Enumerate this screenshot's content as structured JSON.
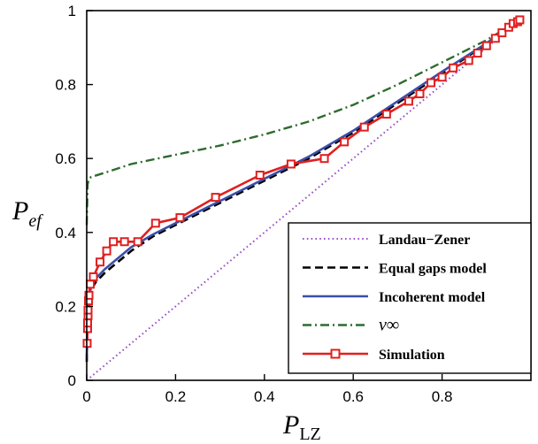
{
  "chart_data": {
    "type": "line",
    "xlabel": "P",
    "xlabel_sub": "LZ",
    "ylabel": "P",
    "ylabel_sub": "ef",
    "xlim": [
      0,
      1
    ],
    "ylim": [
      0,
      1
    ],
    "x_ticks": [
      "0",
      "0.2",
      "0.4",
      "0.6",
      "0.8"
    ],
    "x_tick_values": [
      0,
      0.2,
      0.4,
      0.6,
      0.8
    ],
    "y_ticks": [
      "0",
      "0.2",
      "0.4",
      "0.6",
      "0.8",
      "1"
    ],
    "y_tick_values": [
      0,
      0.2,
      0.4,
      0.6,
      0.8,
      1
    ],
    "grid": false,
    "legend_position": "bottom-right",
    "series": [
      {
        "name": "Landau−Zener",
        "color": "#9b4fc8",
        "style": "dotted",
        "x": [
          0,
          0.975
        ],
        "y": [
          0,
          0.975
        ]
      },
      {
        "name": "Equal gaps model",
        "color": "#000000",
        "style": "dashed",
        "x": [
          0,
          0.002,
          0.005,
          0.01,
          0.02,
          0.04,
          0.06,
          0.08,
          0.1,
          0.15,
          0.2,
          0.3,
          0.4,
          0.5,
          0.6,
          0.7,
          0.8,
          0.9,
          0.975
        ],
        "y": [
          0.05,
          0.16,
          0.21,
          0.245,
          0.265,
          0.29,
          0.31,
          0.33,
          0.35,
          0.39,
          0.42,
          0.48,
          0.54,
          0.6,
          0.67,
          0.75,
          0.83,
          0.91,
          0.975
        ]
      },
      {
        "name": "Incoherent model",
        "color": "#3a4fa8",
        "style": "solid",
        "x": [
          0,
          0.002,
          0.005,
          0.01,
          0.02,
          0.04,
          0.06,
          0.08,
          0.1,
          0.15,
          0.2,
          0.3,
          0.4,
          0.5,
          0.6,
          0.7,
          0.8,
          0.9,
          0.975
        ],
        "y": [
          0.06,
          0.17,
          0.22,
          0.255,
          0.275,
          0.3,
          0.32,
          0.34,
          0.36,
          0.395,
          0.425,
          0.485,
          0.545,
          0.605,
          0.675,
          0.755,
          0.835,
          0.912,
          0.975
        ]
      },
      {
        "name": "v∞",
        "color": "#2e6b2e",
        "style": "dashdot",
        "x": [
          0,
          0.002,
          0.005,
          0.01,
          0.05,
          0.1,
          0.2,
          0.3,
          0.4,
          0.5,
          0.6,
          0.7,
          0.8,
          0.9,
          0.975
        ],
        "y": [
          0.42,
          0.53,
          0.545,
          0.55,
          0.565,
          0.585,
          0.61,
          0.635,
          0.665,
          0.7,
          0.745,
          0.8,
          0.86,
          0.92,
          0.975
        ]
      },
      {
        "name": "Simulation",
        "color": "#e02020",
        "style": "solid-markers",
        "x": [
          0.001,
          0.002,
          0.002,
          0.003,
          0.003,
          0.004,
          0.005,
          0.008,
          0.015,
          0.03,
          0.045,
          0.06,
          0.085,
          0.115,
          0.155,
          0.21,
          0.29,
          0.39,
          0.46,
          0.535,
          0.58,
          0.625,
          0.675,
          0.725,
          0.75,
          0.775,
          0.8,
          0.825,
          0.86,
          0.88,
          0.9,
          0.92,
          0.935,
          0.95,
          0.96,
          0.97,
          0.975
        ],
        "y": [
          0.1,
          0.14,
          0.155,
          0.175,
          0.19,
          0.215,
          0.23,
          0.26,
          0.28,
          0.32,
          0.35,
          0.375,
          0.375,
          0.375,
          0.425,
          0.44,
          0.495,
          0.555,
          0.585,
          0.6,
          0.645,
          0.685,
          0.72,
          0.755,
          0.775,
          0.805,
          0.82,
          0.845,
          0.865,
          0.885,
          0.905,
          0.925,
          0.94,
          0.955,
          0.965,
          0.97,
          0.975
        ]
      }
    ]
  }
}
